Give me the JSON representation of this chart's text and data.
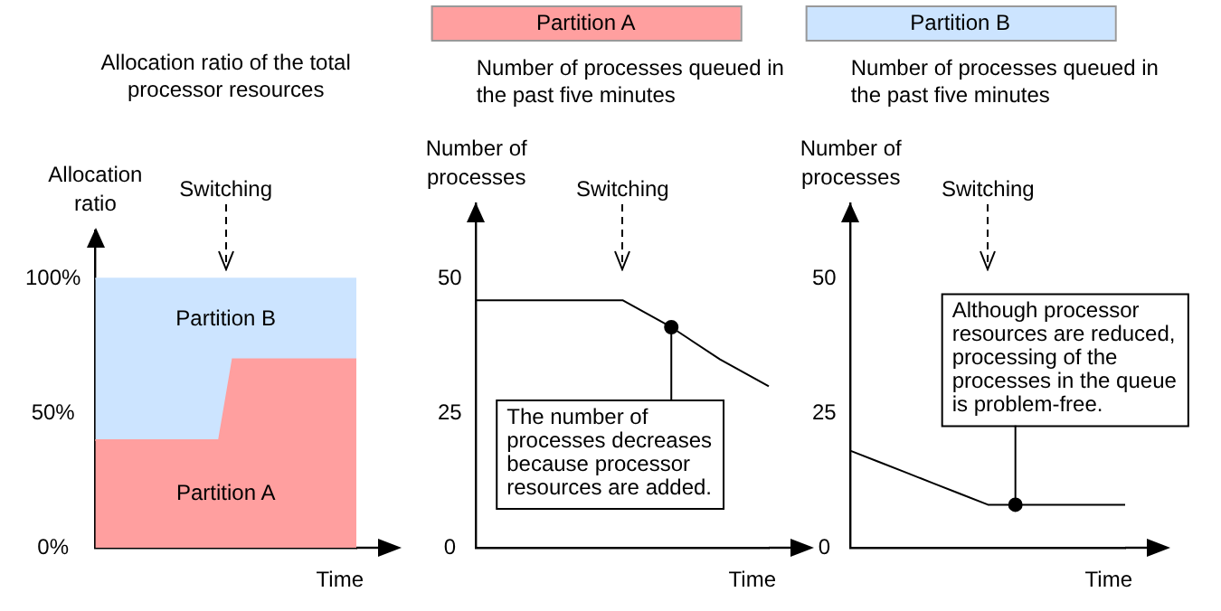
{
  "chart_data": [
    {
      "type": "area",
      "title": "Allocation ratio of the total processor resources",
      "ylabel": "Allocation ratio",
      "xlabel": "Time",
      "categories": [
        null,
        null,
        null,
        null,
        null,
        null,
        null,
        null,
        null,
        null,
        null,
        null,
        null,
        null,
        null,
        null,
        null,
        null,
        null,
        null
      ],
      "stacked": true,
      "series": [
        {
          "name": "Partition A",
          "color": "#ff9f9f",
          "values": [
            40,
            40,
            40,
            40,
            40,
            40,
            40,
            40,
            40,
            40,
            70,
            70,
            70,
            70,
            70,
            70,
            70,
            70,
            70,
            70
          ]
        },
        {
          "name": "Partition B",
          "color": "#cce4ff",
          "values": [
            60,
            60,
            60,
            60,
            60,
            60,
            60,
            60,
            60,
            60,
            30,
            30,
            30,
            30,
            30,
            30,
            30,
            30,
            30,
            30
          ]
        }
      ],
      "ylim": [
        0,
        118
      ],
      "yticks": [
        {
          "value": 0,
          "label": "0%"
        },
        {
          "value": 50,
          "label": "50%"
        },
        {
          "value": 100,
          "label": "100%"
        }
      ],
      "annotations": [
        "Switching"
      ],
      "tick_labels": "y"
    },
    {
      "type": "line",
      "title": "Partition A",
      "subtitle": "Number of processes queued in the past five minutes",
      "ylabel": "Number of processes",
      "xlabel": "Time",
      "categories": [
        null,
        null,
        null,
        null,
        null,
        null,
        null
      ],
      "series": [
        {
          "color": "#000000",
          "values": [
            46,
            46,
            46,
            46,
            41,
            35,
            30
          ]
        },
        {
          "type": "scatter",
          "color": "#000000",
          "marker": "circle",
          "values": [
            null,
            null,
            null,
            null,
            41,
            null,
            null
          ]
        }
      ],
      "ylim": [
        0,
        64
      ],
      "yticks": [
        0,
        25,
        50
      ],
      "annotations": [
        "Switching",
        "The number of processes decreases because processor resources are added."
      ],
      "tick_labels": "y"
    },
    {
      "type": "line",
      "title": "Partition B",
      "subtitle": "Number of processes queued in the past five minutes",
      "ylabel": "Number of processes",
      "xlabel": "Time",
      "categories": [
        null,
        null,
        null,
        null,
        null,
        null,
        null,
        null,
        null,
        null,
        null
      ],
      "series": [
        {
          "color": "#000000",
          "values": [
            18,
            16,
            14,
            12,
            10,
            8,
            8,
            8,
            8,
            8,
            8
          ]
        },
        {
          "type": "scatter",
          "color": "#000000",
          "marker": "circle",
          "values": [
            null,
            null,
            null,
            null,
            null,
            null,
            8,
            null,
            null,
            null,
            null
          ]
        }
      ],
      "ylim": [
        0,
        64
      ],
      "yticks": [
        0,
        25,
        50
      ],
      "annotations": [
        "Switching",
        "Although processor resources are reduced, processing of the processes in the queue is problem-free."
      ],
      "tick_labels": "y"
    }
  ]
}
